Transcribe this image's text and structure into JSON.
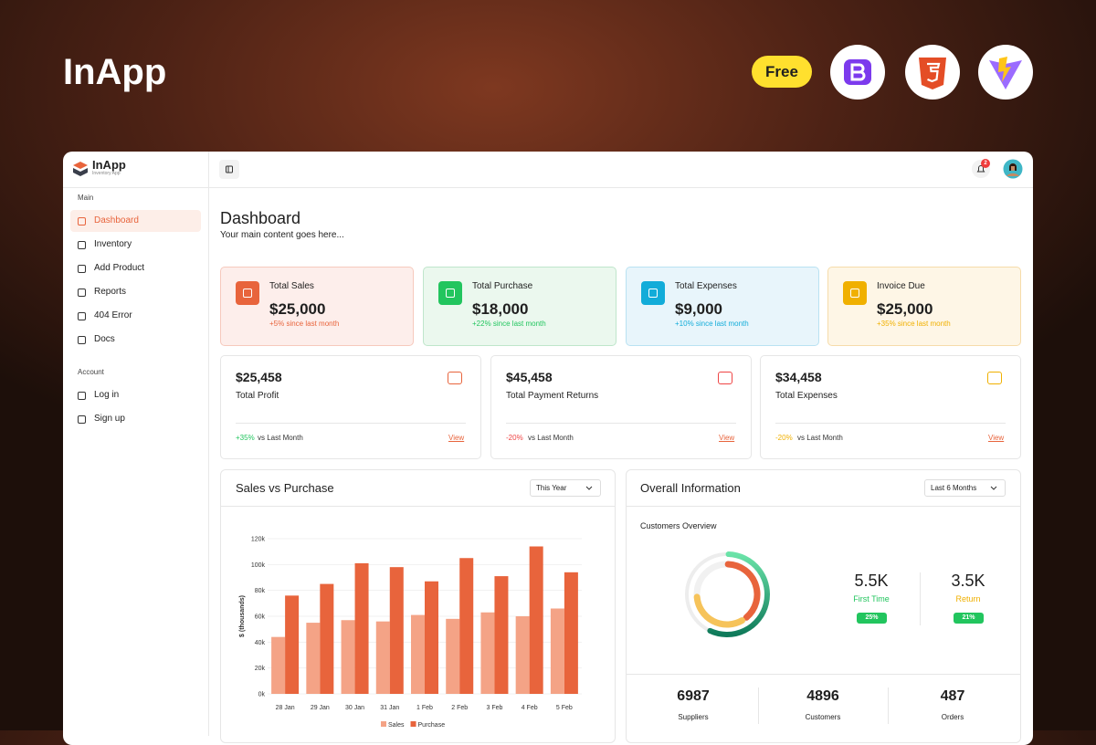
{
  "brand": {
    "name": "InApp",
    "badge": "Free"
  },
  "sidebar": {
    "logo": "InApp",
    "tagline": "Inventory App",
    "sections": [
      {
        "title": "Main",
        "items": [
          "Dashboard",
          "Inventory",
          "Add Product",
          "Reports",
          "404 Error",
          "Docs"
        ]
      },
      {
        "title": "Account",
        "items": [
          "Log in",
          "Sign up"
        ]
      }
    ]
  },
  "topbar": {
    "notifications": 2
  },
  "page": {
    "title": "Dashboard",
    "subtitle": "Your main content goes here..."
  },
  "stat_cards": [
    {
      "title": "Total Sales",
      "value": "$25,000",
      "change": "+5% since last month"
    },
    {
      "title": "Total Purchase",
      "value": "$18,000",
      "change": "+22% since last month"
    },
    {
      "title": "Total Expenses",
      "value": "$9,000",
      "change": "+10% since last month"
    },
    {
      "title": "Invoice Due",
      "value": "$25,000",
      "change": "+35% since last month"
    }
  ],
  "metric_cards": [
    {
      "value": "$25,458",
      "label": "Total Profit",
      "change": "+35%",
      "note": "vs Last Month",
      "link": "View"
    },
    {
      "value": "$45,458",
      "label": "Total Payment Returns",
      "change": "-20%",
      "note": "vs Last Month",
      "link": "View"
    },
    {
      "value": "$34,458",
      "label": "Total Expenses",
      "change": "-20%",
      "note": "vs Last Month",
      "link": "View"
    }
  ],
  "sales_panel": {
    "title": "Sales vs Purchase",
    "filter": "This Year"
  },
  "overview_panel": {
    "title": "Overall Information",
    "filter": "Last 6 Months",
    "subtitle": "Customers Overview",
    "stats": [
      {
        "value": "5.5K",
        "label": "First Time",
        "change": "25%"
      },
      {
        "value": "3.5K",
        "label": "Return",
        "change": "21%"
      }
    ],
    "totals": [
      {
        "value": 6987,
        "label": "Suppliers"
      },
      {
        "value": 4896,
        "label": "Customers"
      },
      {
        "value": 487,
        "label": "Orders"
      }
    ]
  },
  "chart_data": {
    "type": "bar",
    "ylabel": "$ (thousands)",
    "categories": [
      "28 Jan",
      "29 Jan",
      "30 Jan",
      "31 Jan",
      "1 Feb",
      "2 Feb",
      "3 Feb",
      "4 Feb",
      "5 Feb"
    ],
    "series": [
      {
        "name": "Sales",
        "color": "#f4a386",
        "values": [
          44,
          55,
          57,
          56,
          61,
          58,
          63,
          60,
          66
        ]
      },
      {
        "name": "Purchase",
        "color": "#e8643c",
        "values": [
          76,
          85,
          101,
          98,
          87,
          105,
          91,
          114,
          94
        ]
      }
    ],
    "ylim": [
      0,
      120
    ],
    "yticks": [
      {
        "value": 0,
        "label": "0k"
      },
      {
        "value": 20,
        "label": "20k"
      },
      {
        "value": 40,
        "label": "40k"
      },
      {
        "value": 60,
        "label": "60k"
      },
      {
        "value": 80,
        "label": "80k"
      },
      {
        "value": 100,
        "label": "100k"
      },
      {
        "value": 120,
        "label": "120k"
      }
    ],
    "grid": true
  }
}
